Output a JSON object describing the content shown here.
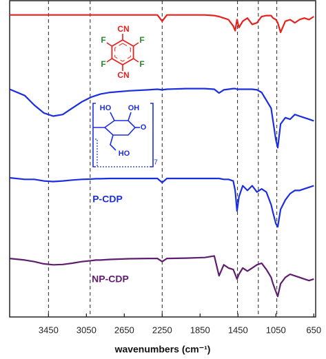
{
  "chart_data": {
    "type": "line",
    "x_label": "wavenumbers (cm⁻¹)",
    "xlim": [
      3860,
      630
    ],
    "xticks": [
      3450,
      3050,
      2650,
      2250,
      1850,
      1450,
      1050,
      650
    ],
    "ylim": [
      0,
      100
    ],
    "x": [
      3860,
      3700,
      3600,
      3500,
      3400,
      3300,
      3200,
      3100,
      3000,
      2950,
      2900,
      2800,
      2600,
      2400,
      2300,
      2250,
      2200,
      2000,
      1800,
      1700,
      1650,
      1600,
      1550,
      1500,
      1480,
      1460,
      1440,
      1400,
      1350,
      1300,
      1250,
      1200,
      1150,
      1100,
      1080,
      1050,
      1030,
      1000,
      950,
      900,
      850,
      800,
      750,
      700,
      650
    ],
    "series": [
      {
        "color": "#e8201c",
        "values": [
          95.5,
          95.5,
          95.5,
          95.5,
          95.5,
          95.5,
          95.5,
          95.5,
          95.5,
          95.5,
          95.5,
          95.5,
          95.5,
          95.5,
          95.5,
          93.5,
          95.5,
          95.5,
          95.5,
          95.3,
          95,
          94.5,
          94,
          92,
          90.5,
          94,
          91.5,
          93.5,
          94.5,
          92.5,
          93,
          95,
          95.3,
          95.3,
          94.5,
          94,
          93,
          90,
          93.5,
          94,
          93,
          94,
          94.5,
          94,
          95
        ]
      },
      {
        "color": "#1a2ee0",
        "values": [
          72,
          70,
          67,
          64.5,
          63.5,
          64,
          66,
          68,
          69.5,
          70,
          70.5,
          71,
          71.5,
          71.8,
          72,
          71.8,
          72,
          72.2,
          72.2,
          72,
          70.8,
          71.8,
          72,
          72.2,
          72.2,
          72,
          72,
          72,
          72,
          72,
          71.8,
          71,
          68.5,
          66,
          62,
          56,
          53.5,
          61,
          63,
          62.5,
          64,
          63.5,
          63,
          62.5,
          62
        ]
      },
      {
        "name": "P-CDP",
        "color": "#1a2ee0",
        "values": [
          44,
          43.5,
          43.5,
          43,
          42.8,
          43,
          43.3,
          43.5,
          43.6,
          43.7,
          43.7,
          43.8,
          43.8,
          43.8,
          43.8,
          42.5,
          43.8,
          43.8,
          43.8,
          43.8,
          43.8,
          43.5,
          43.5,
          43,
          40,
          33.5,
          38,
          41.5,
          40,
          41.5,
          39.5,
          40.5,
          39.5,
          35.5,
          33,
          29.5,
          28.5,
          34,
          37,
          39,
          40,
          40,
          40.5,
          41,
          41.5
        ]
      },
      {
        "name": "NP-CDP",
        "color": "#5e1d6e",
        "values": [
          18.5,
          18,
          17.5,
          16.8,
          16.5,
          16.6,
          17,
          17.5,
          17.8,
          18,
          18,
          18.2,
          18.4,
          18.5,
          18.5,
          17.5,
          18.5,
          18.6,
          18.8,
          19.3,
          13,
          16.5,
          15.5,
          15,
          13.5,
          12,
          13.5,
          15.5,
          14.5,
          15.5,
          16.5,
          17,
          15,
          12.5,
          10.5,
          8,
          6.5,
          10.5,
          12.5,
          13.5,
          13,
          12.5,
          12,
          11.5,
          12
        ]
      }
    ],
    "vlines": [
      3450,
      3010,
      2250,
      1455,
      1235,
      1040
    ],
    "structures": [
      {
        "labels": [
          "CN",
          "F",
          "F",
          "F",
          "F",
          "CN"
        ]
      },
      {
        "labels": [
          "HO",
          "OH",
          "O",
          "HO",
          "7"
        ]
      }
    ]
  }
}
